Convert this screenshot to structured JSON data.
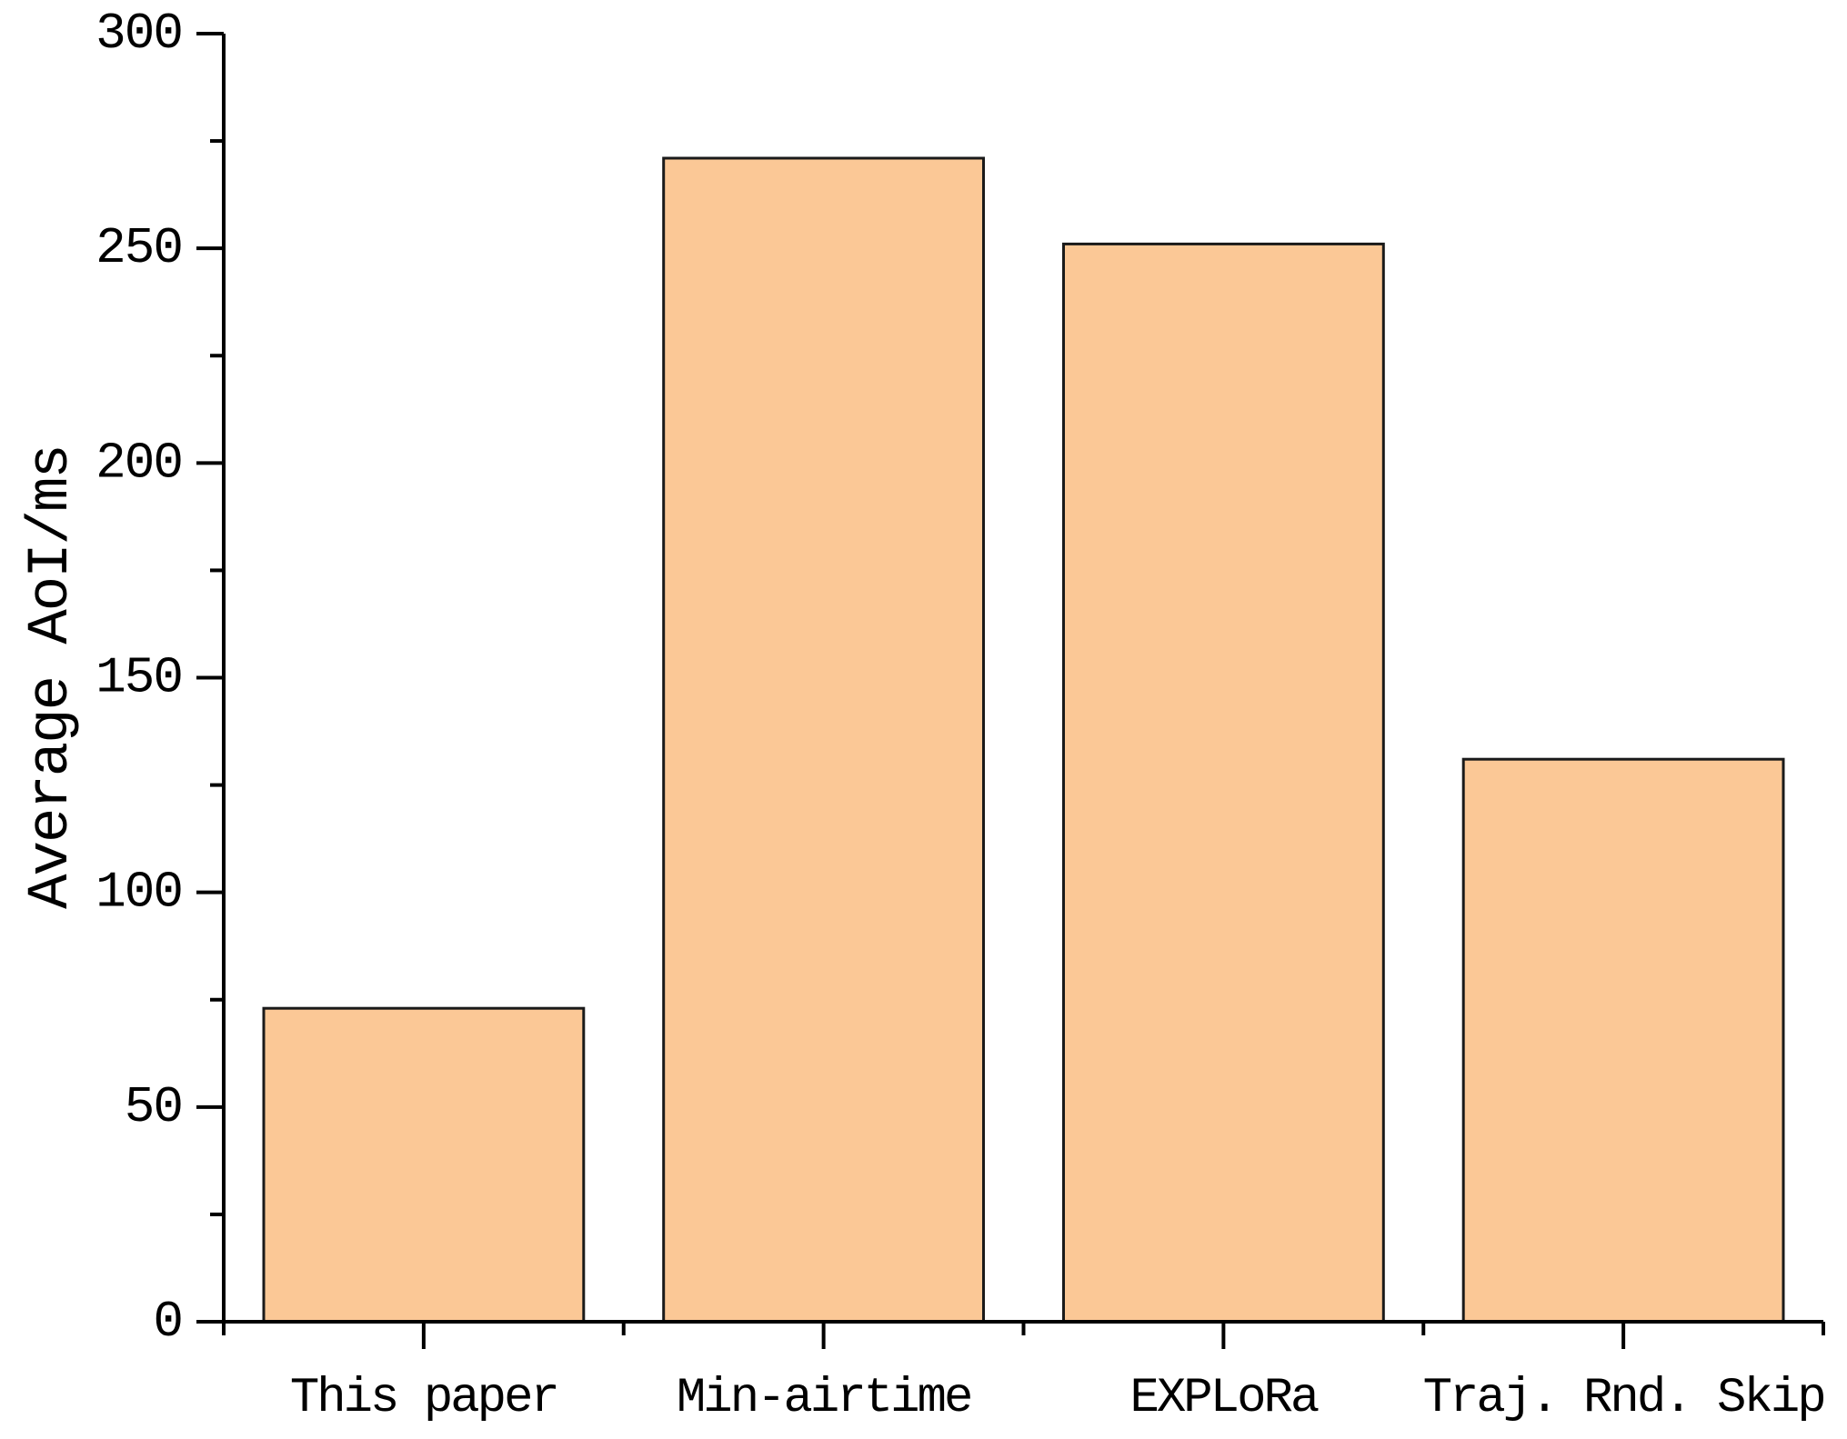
{
  "chart_data": {
    "type": "bar",
    "categories": [
      "This paper",
      "Min-airtime",
      "EXPLoRa",
      "Traj. Rnd. Skip"
    ],
    "values": [
      73,
      271,
      251,
      131
    ],
    "title": "",
    "xlabel": "",
    "ylabel": "Average AoI/ms",
    "ylim": [
      0,
      300
    ],
    "yticks": [
      0,
      50,
      100,
      150,
      200,
      250,
      300
    ],
    "y_minor_tick_step": 25,
    "grid": false,
    "legend": "none",
    "spines": [
      "left",
      "bottom"
    ],
    "bar_fill_color": "#FBC896",
    "bar_border_color": "#1A1A1A",
    "axis_color": "#000000",
    "label_color": "#000000"
  }
}
